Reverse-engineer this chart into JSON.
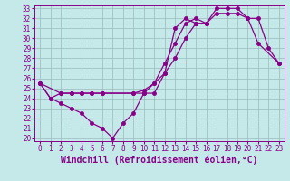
{
  "xlabel": "Windchill (Refroidissement éolien,°C)",
  "bg_color": "#c5e8e8",
  "line_color": "#880088",
  "grid_color": "#99bbbb",
  "xlim": [
    -0.5,
    23.5
  ],
  "ylim": [
    19.7,
    33.3
  ],
  "xticks": [
    0,
    1,
    2,
    3,
    4,
    5,
    6,
    7,
    8,
    9,
    10,
    11,
    12,
    13,
    14,
    15,
    16,
    17,
    18,
    19,
    20,
    21,
    22,
    23
  ],
  "yticks": [
    20,
    21,
    22,
    23,
    24,
    25,
    26,
    27,
    28,
    29,
    30,
    31,
    32,
    33
  ],
  "line1_x": [
    0,
    1,
    2,
    3,
    4,
    5,
    6,
    7,
    8,
    9,
    10,
    11,
    12,
    13,
    14,
    15,
    16
  ],
  "line1_y": [
    25.5,
    24.0,
    23.5,
    23.0,
    22.5,
    21.5,
    21.0,
    20.0,
    21.5,
    22.5,
    24.5,
    24.5,
    26.5,
    31.0,
    32.0,
    31.5,
    31.5
  ],
  "line2_x": [
    0,
    1,
    2,
    3,
    4,
    5,
    6,
    9,
    10,
    11,
    12,
    13,
    14,
    15,
    16,
    17,
    18,
    19,
    20,
    21,
    23
  ],
  "line2_y": [
    25.5,
    24.0,
    24.5,
    24.5,
    24.5,
    24.5,
    24.5,
    24.5,
    24.5,
    25.5,
    27.5,
    29.5,
    31.5,
    32.0,
    31.5,
    33.0,
    33.0,
    33.0,
    32.0,
    29.5,
    27.5
  ],
  "line3_x": [
    0,
    2,
    3,
    4,
    5,
    6,
    9,
    10,
    11,
    12,
    13,
    14,
    15,
    16,
    17,
    18,
    19,
    20,
    21,
    22,
    23
  ],
  "line3_y": [
    25.5,
    24.5,
    24.5,
    24.5,
    24.5,
    24.5,
    24.5,
    24.8,
    25.5,
    26.5,
    28.0,
    30.0,
    31.5,
    31.5,
    32.5,
    32.5,
    32.5,
    32.0,
    32.0,
    29.0,
    27.5
  ],
  "xlabel_fontsize": 7,
  "tick_fontsize": 5.5,
  "marker": "o",
  "markersize": 2.5,
  "linewidth": 0.9
}
